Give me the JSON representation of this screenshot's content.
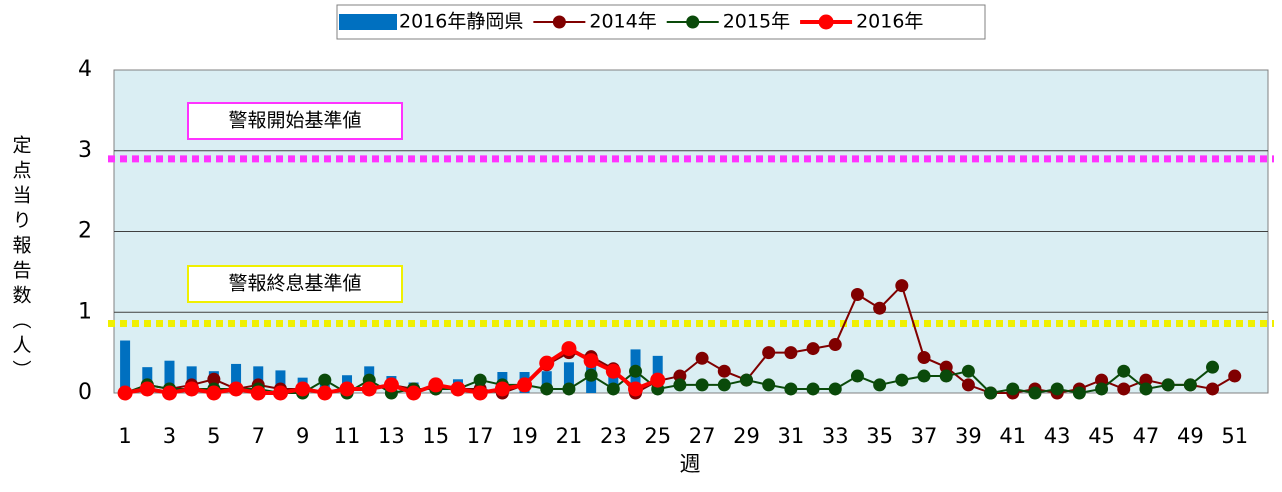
{
  "chart_data": {
    "type": "bar_line",
    "y_axis_label": "定点当り報告数（人）",
    "x_axis_label": "週",
    "categories": [
      1,
      null,
      3,
      null,
      5,
      null,
      7,
      null,
      9,
      null,
      11,
      null,
      13,
      null,
      15,
      null,
      17,
      null,
      19,
      null,
      21,
      null,
      23,
      null,
      25,
      null,
      27,
      null,
      29,
      null,
      31,
      null,
      33,
      null,
      35,
      null,
      37,
      null,
      39,
      null,
      41,
      null,
      43,
      null,
      45,
      null,
      47,
      null,
      49,
      null,
      51,
      null
    ],
    "ylim": [
      0,
      4
    ],
    "yticks": [
      0,
      1,
      2,
      3,
      4
    ],
    "grid": true,
    "legend": "top",
    "series": [
      {
        "name": "2016年静岡県",
        "kind": "bar",
        "color": "#0070c0",
        "values": [
          0.65,
          0.32,
          0.4,
          0.33,
          0.27,
          0.36,
          0.33,
          0.28,
          0.19,
          0.15,
          0.22,
          0.33,
          0.21,
          0.13,
          0.1,
          0.17,
          0.2,
          0.26,
          0.26,
          0.27,
          0.38,
          0.4,
          0.27,
          0.54,
          0.46,
          null,
          null,
          null,
          null,
          null,
          null,
          null,
          null,
          null,
          null,
          null,
          null,
          null,
          null,
          null,
          null,
          null,
          null,
          null,
          null,
          null,
          null,
          null,
          null,
          null,
          null,
          null
        ]
      },
      {
        "name": "2014年",
        "kind": "line",
        "color": "#800000",
        "values": [
          0,
          0.1,
          0.05,
          0.1,
          0.17,
          0.05,
          0.1,
          0.05,
          0.05,
          0,
          0.05,
          0.05,
          0.1,
          0.05,
          0.05,
          0.05,
          0.05,
          0,
          0.1,
          0.35,
          0.5,
          0.45,
          0.3,
          0,
          0.15,
          0.21,
          0.43,
          0.27,
          0.16,
          0.5,
          0.5,
          0.55,
          0.6,
          1.22,
          1.05,
          1.33,
          0.44,
          0.32,
          0.1,
          0,
          0,
          0.05,
          0,
          0.05,
          0.16,
          0.05,
          0.16,
          0.1,
          0.1,
          0.05,
          0.21,
          null
        ]
      },
      {
        "name": "2015年",
        "kind": "line",
        "color": "#0a4a0a",
        "values": [
          0,
          0.1,
          0.05,
          0.05,
          0.05,
          0.05,
          0.05,
          0,
          0,
          0.16,
          0,
          0.16,
          0,
          0.05,
          0.05,
          0.05,
          0.16,
          0.1,
          0.1,
          0.05,
          0.05,
          0.22,
          0.05,
          0.27,
          0.05,
          0.1,
          0.1,
          0.1,
          0.16,
          0.1,
          0.05,
          0.05,
          0.05,
          0.21,
          0.1,
          0.16,
          0.21,
          0.21,
          0.27,
          0,
          0.05,
          0,
          0.05,
          0,
          0.05,
          0.27,
          0.05,
          0.1,
          0.1,
          0.32,
          null,
          null
        ]
      },
      {
        "name": "2016年",
        "kind": "line",
        "color": "#ff0000",
        "width": 4,
        "values": [
          0,
          0.05,
          0,
          0.05,
          0,
          0.05,
          0,
          0,
          0.05,
          0,
          0.05,
          0.05,
          0.1,
          0,
          0.1,
          0.05,
          0,
          0.05,
          0.1,
          0.37,
          0.55,
          0.4,
          0.27,
          0.05,
          0.16,
          null,
          null,
          null,
          null,
          null,
          null,
          null,
          null,
          null,
          null,
          null,
          null,
          null,
          null,
          null,
          null,
          null,
          null,
          null,
          null,
          null,
          null,
          null,
          null,
          null,
          null,
          null
        ]
      }
    ],
    "reference_lines": [
      {
        "label": "警報開始基準値",
        "value": 2.9,
        "color": "#ff33ff"
      },
      {
        "label": "警報終息基準値",
        "value": 0.86,
        "color": "#f0f000"
      }
    ]
  }
}
